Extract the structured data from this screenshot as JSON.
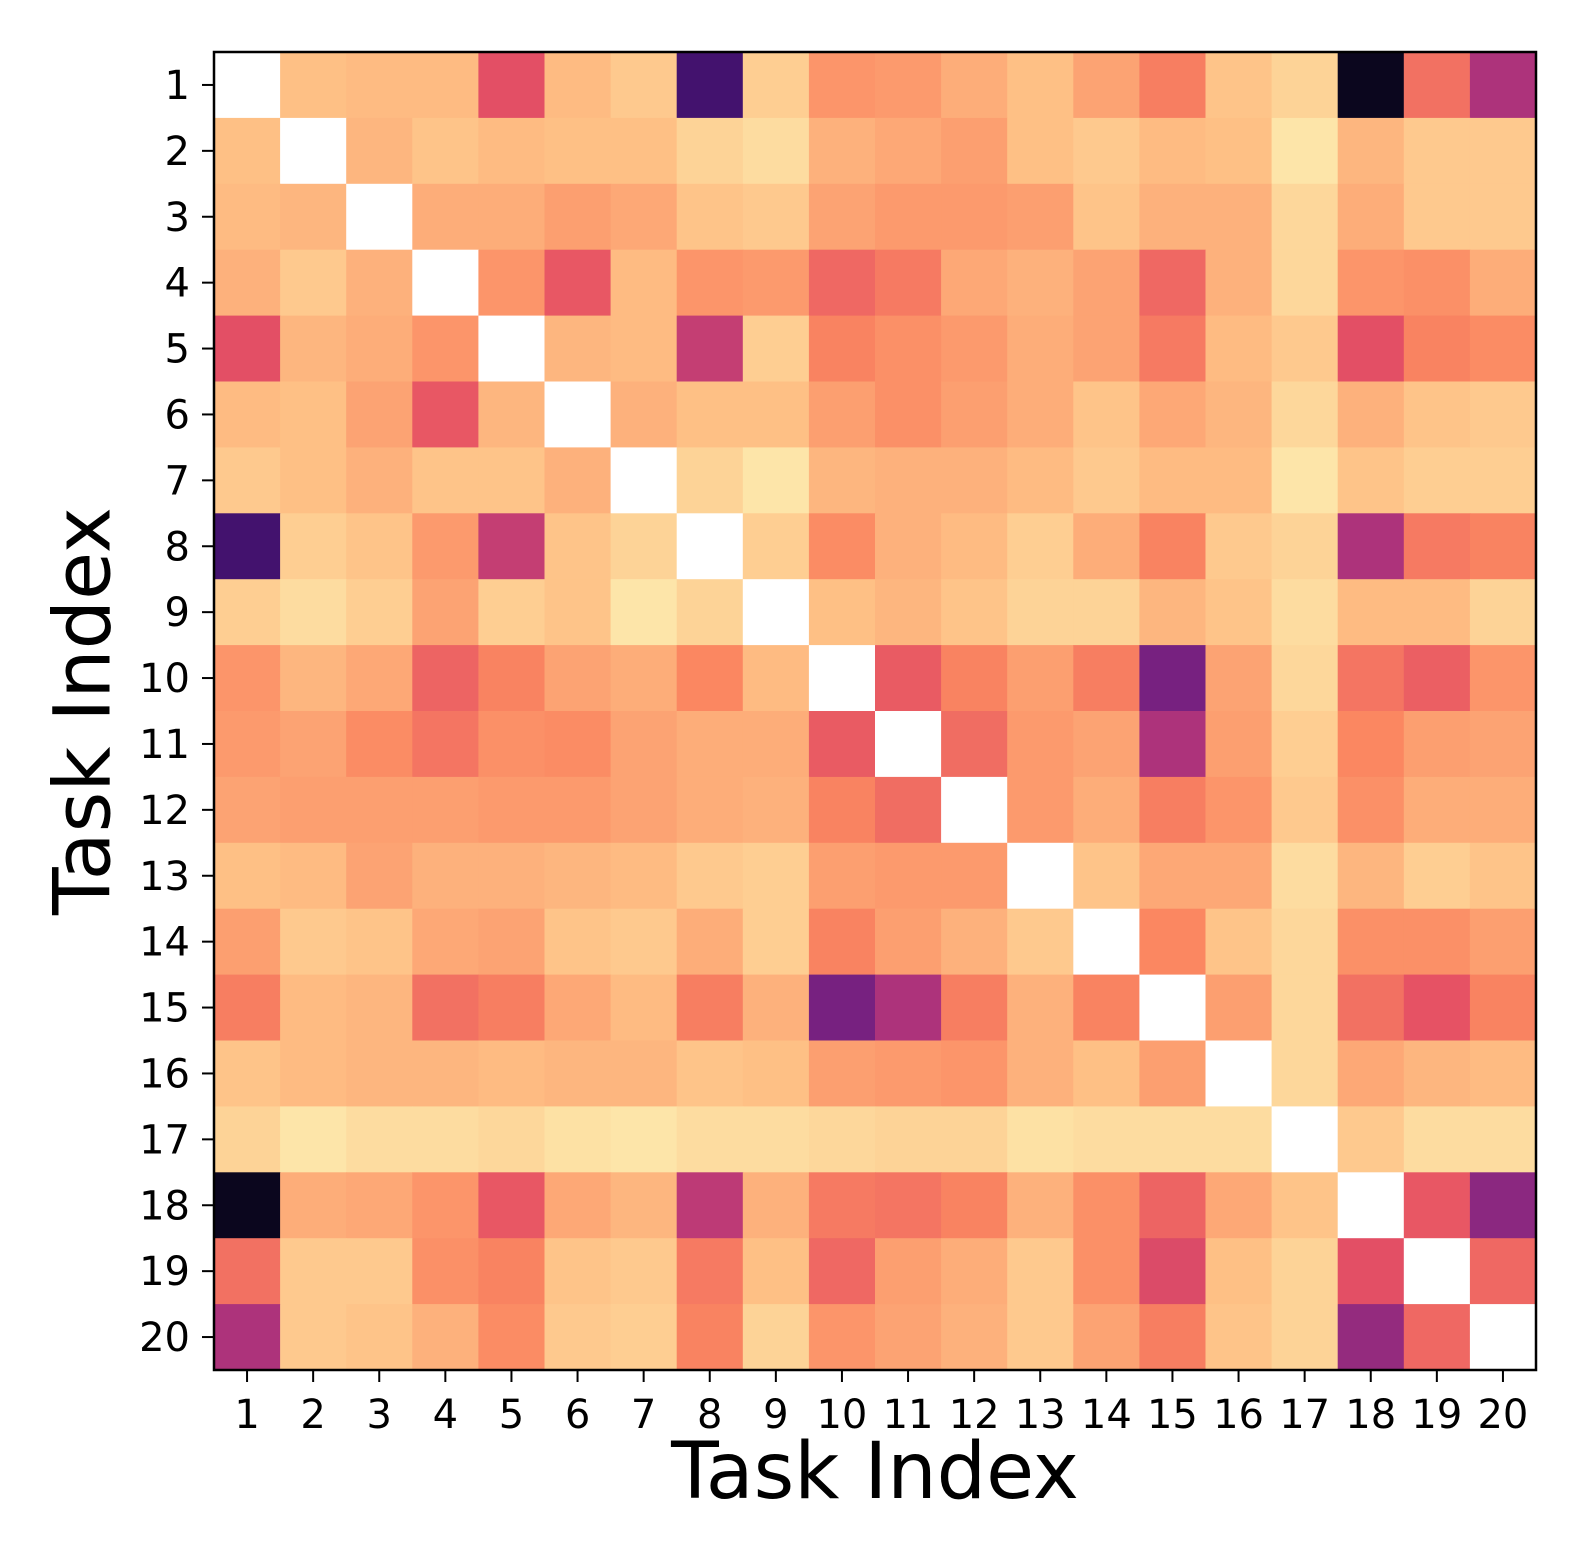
{
  "chart_data": {
    "type": "heatmap",
    "title": "",
    "xlabel": "Task Index",
    "ylabel": "Task Index",
    "x_categories": [
      "1",
      "2",
      "3",
      "4",
      "5",
      "6",
      "7",
      "8",
      "9",
      "10",
      "11",
      "12",
      "13",
      "14",
      "15",
      "16",
      "17",
      "18",
      "19",
      "20"
    ],
    "y_categories": [
      "1",
      "2",
      "3",
      "4",
      "5",
      "6",
      "7",
      "8",
      "9",
      "10",
      "11",
      "12",
      "13",
      "14",
      "15",
      "16",
      "17",
      "18",
      "19",
      "20"
    ],
    "colormap": "magma",
    "value_range": [
      0,
      1
    ],
    "value_note": "relative color intensity (0 = darkest, 1 = lightest); diagonal cells are blank",
    "grid": false,
    "legend": "none",
    "diagonal_color": "#ffffff",
    "values": [
      [
        null,
        0.87,
        0.86,
        0.86,
        0.62,
        0.86,
        0.89,
        0.22,
        0.9,
        0.78,
        0.79,
        0.83,
        0.87,
        0.81,
        0.73,
        0.88,
        0.91,
        0.05,
        0.7,
        0.48
      ],
      [
        0.87,
        null,
        0.85,
        0.88,
        0.86,
        0.87,
        0.87,
        0.91,
        0.93,
        0.84,
        0.82,
        0.8,
        0.87,
        0.89,
        0.86,
        0.87,
        0.95,
        0.85,
        0.89,
        0.89
      ],
      [
        0.86,
        0.85,
        null,
        0.83,
        0.83,
        0.8,
        0.82,
        0.88,
        0.89,
        0.81,
        0.79,
        0.79,
        0.8,
        0.88,
        0.84,
        0.84,
        0.92,
        0.83,
        0.89,
        0.89
      ],
      [
        0.84,
        0.89,
        0.84,
        null,
        0.78,
        0.64,
        0.86,
        0.78,
        0.79,
        0.68,
        0.72,
        0.82,
        0.84,
        0.81,
        0.68,
        0.84,
        0.92,
        0.78,
        0.77,
        0.83
      ],
      [
        0.62,
        0.85,
        0.83,
        0.78,
        null,
        0.85,
        0.86,
        0.54,
        0.9,
        0.74,
        0.77,
        0.79,
        0.83,
        0.81,
        0.72,
        0.86,
        0.89,
        0.62,
        0.74,
        0.76
      ],
      [
        0.86,
        0.87,
        0.81,
        0.64,
        0.85,
        null,
        0.84,
        0.87,
        0.87,
        0.8,
        0.77,
        0.8,
        0.83,
        0.88,
        0.82,
        0.85,
        0.92,
        0.84,
        0.88,
        0.89
      ],
      [
        0.89,
        0.87,
        0.84,
        0.88,
        0.88,
        0.84,
        null,
        0.91,
        0.95,
        0.85,
        0.84,
        0.84,
        0.86,
        0.89,
        0.86,
        0.86,
        0.95,
        0.88,
        0.9,
        0.9
      ],
      [
        0.22,
        0.9,
        0.88,
        0.79,
        0.54,
        0.88,
        0.91,
        null,
        0.9,
        0.76,
        0.84,
        0.86,
        0.9,
        0.83,
        0.74,
        0.89,
        0.91,
        0.48,
        0.72,
        0.74
      ],
      [
        0.9,
        0.93,
        0.9,
        0.81,
        0.9,
        0.88,
        0.95,
        0.91,
        null,
        0.87,
        0.85,
        0.88,
        0.91,
        0.91,
        0.85,
        0.88,
        0.93,
        0.86,
        0.86,
        0.91
      ],
      [
        0.78,
        0.85,
        0.82,
        0.67,
        0.74,
        0.81,
        0.83,
        0.75,
        0.86,
        null,
        0.65,
        0.74,
        0.8,
        0.73,
        0.35,
        0.81,
        0.92,
        0.71,
        0.66,
        0.78
      ],
      [
        0.79,
        0.81,
        0.76,
        0.71,
        0.77,
        0.76,
        0.81,
        0.83,
        0.83,
        0.65,
        null,
        0.69,
        0.79,
        0.81,
        0.48,
        0.8,
        0.9,
        0.75,
        0.8,
        0.81
      ],
      [
        0.81,
        0.8,
        0.8,
        0.8,
        0.79,
        0.79,
        0.81,
        0.83,
        0.84,
        0.74,
        0.69,
        null,
        0.79,
        0.83,
        0.73,
        0.78,
        0.89,
        0.77,
        0.83,
        0.83
      ],
      [
        0.87,
        0.86,
        0.81,
        0.84,
        0.84,
        0.85,
        0.86,
        0.89,
        0.9,
        0.8,
        0.79,
        0.79,
        null,
        0.88,
        0.82,
        0.82,
        0.93,
        0.85,
        0.9,
        0.88
      ],
      [
        0.8,
        0.89,
        0.88,
        0.82,
        0.81,
        0.88,
        0.89,
        0.83,
        0.9,
        0.74,
        0.8,
        0.84,
        0.89,
        null,
        0.75,
        0.88,
        0.92,
        0.77,
        0.77,
        0.8
      ],
      [
        0.73,
        0.86,
        0.85,
        0.7,
        0.73,
        0.82,
        0.86,
        0.73,
        0.84,
        0.35,
        0.48,
        0.73,
        0.84,
        0.74,
        null,
        0.8,
        0.92,
        0.7,
        0.63,
        0.74
      ],
      [
        0.88,
        0.86,
        0.85,
        0.85,
        0.86,
        0.85,
        0.85,
        0.88,
        0.87,
        0.8,
        0.79,
        0.78,
        0.84,
        0.87,
        0.8,
        null,
        0.92,
        0.82,
        0.85,
        0.86
      ],
      [
        0.91,
        0.95,
        0.93,
        0.93,
        0.92,
        0.94,
        0.95,
        0.93,
        0.93,
        0.92,
        0.91,
        0.91,
        0.94,
        0.93,
        0.93,
        0.93,
        null,
        0.89,
        0.93,
        0.93
      ],
      [
        0.05,
        0.83,
        0.82,
        0.78,
        0.64,
        0.82,
        0.85,
        0.52,
        0.84,
        0.72,
        0.71,
        0.74,
        0.84,
        0.77,
        0.67,
        0.82,
        0.88,
        null,
        0.64,
        0.4
      ],
      [
        0.7,
        0.89,
        0.89,
        0.77,
        0.74,
        0.88,
        0.89,
        0.72,
        0.87,
        0.68,
        0.8,
        0.83,
        0.89,
        0.77,
        0.6,
        0.87,
        0.91,
        0.62,
        null,
        0.68
      ],
      [
        0.48,
        0.89,
        0.88,
        0.84,
        0.76,
        0.89,
        0.9,
        0.74,
        0.91,
        0.78,
        0.81,
        0.84,
        0.89,
        0.81,
        0.73,
        0.88,
        0.91,
        0.42,
        0.68,
        null
      ]
    ]
  }
}
